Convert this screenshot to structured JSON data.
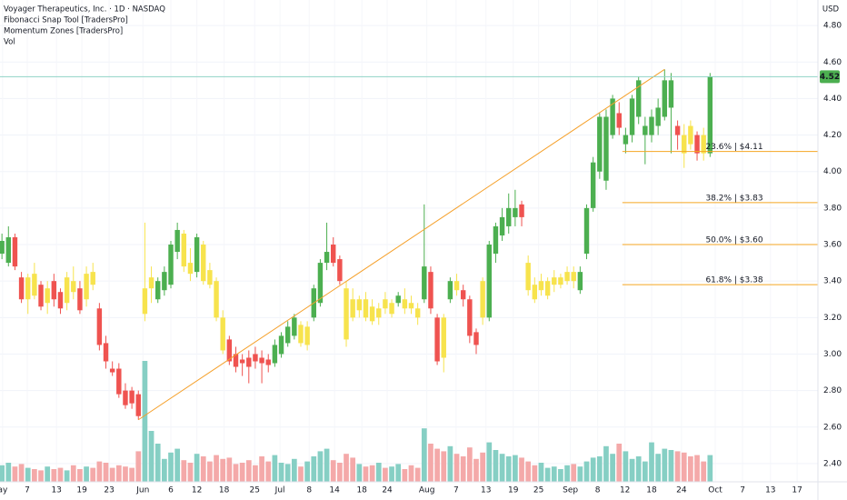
{
  "chart_data": {
    "type": "candlestick",
    "title": "Voyager Therapeutics, Inc. · 1D · NASDAQ",
    "indicators": [
      "Fibonacci Snap Tool [TradersPro]",
      "Momentum Zones [TradersPro]",
      "Vol"
    ],
    "currency": "USD",
    "ylim": [
      2.3,
      4.94
    ],
    "yticks": [
      {
        "value": 2.4,
        "label": "2.40"
      },
      {
        "value": 2.6,
        "label": "2.60"
      },
      {
        "value": 2.8,
        "label": "2.80"
      },
      {
        "value": 3.0,
        "label": "3.00"
      },
      {
        "value": 3.2,
        "label": "3.20"
      },
      {
        "value": 3.4,
        "label": "3.40"
      },
      {
        "value": 3.6,
        "label": "3.60"
      },
      {
        "value": 3.8,
        "label": "3.80"
      },
      {
        "value": 4.0,
        "label": "4.00"
      },
      {
        "value": 4.2,
        "label": "4.20"
      },
      {
        "value": 4.4,
        "label": "4.40"
      },
      {
        "value": 4.6,
        "label": "4.60"
      },
      {
        "value": 4.8,
        "label": "4.80"
      }
    ],
    "xlim": [
      -0.3,
      125.6
    ],
    "xticks": [
      {
        "value": 0.1,
        "label": "ay"
      },
      {
        "value": 3.9,
        "label": "7"
      },
      {
        "value": 8.4,
        "label": "13"
      },
      {
        "value": 12.3,
        "label": "19"
      },
      {
        "value": 16.5,
        "label": "23"
      },
      {
        "value": 21.7,
        "label": "Jun"
      },
      {
        "value": 26,
        "label": "6"
      },
      {
        "value": 30,
        "label": "12"
      },
      {
        "value": 34.2,
        "label": "18"
      },
      {
        "value": 38.9,
        "label": "25"
      },
      {
        "value": 42.8,
        "label": "Jul"
      },
      {
        "value": 47.3,
        "label": "8"
      },
      {
        "value": 51.2,
        "label": "14"
      },
      {
        "value": 55.4,
        "label": "18"
      },
      {
        "value": 59.3,
        "label": "24"
      },
      {
        "value": 65.4,
        "label": "Aug"
      },
      {
        "value": 69.9,
        "label": "7"
      },
      {
        "value": 74.5,
        "label": "13"
      },
      {
        "value": 78.7,
        "label": "19"
      },
      {
        "value": 82.6,
        "label": "25"
      },
      {
        "value": 87.5,
        "label": "Sep"
      },
      {
        "value": 91.7,
        "label": "8"
      },
      {
        "value": 95.9,
        "label": "12"
      },
      {
        "value": 100,
        "label": "18"
      },
      {
        "value": 104.6,
        "label": "24"
      },
      {
        "value": 109.8,
        "label": "Oct"
      },
      {
        "value": 114,
        "label": "7"
      },
      {
        "value": 118.3,
        "label": "13"
      },
      {
        "value": 122.4,
        "label": "17"
      }
    ],
    "grid": true,
    "candles": [
      [
        3.55,
        3.66,
        3.52,
        3.62
      ],
      [
        3.5,
        3.7,
        3.48,
        3.64
      ],
      [
        3.64,
        3.66,
        3.46,
        3.48
      ],
      [
        3.42,
        3.45,
        3.28,
        3.3
      ],
      [
        3.3,
        3.44,
        3.22,
        3.42
      ],
      [
        3.44,
        3.5,
        3.3,
        3.32
      ],
      [
        3.38,
        3.4,
        3.24,
        3.26
      ],
      [
        3.28,
        3.4,
        3.22,
        3.36
      ],
      [
        3.4,
        3.44,
        3.26,
        3.3
      ],
      [
        3.34,
        3.36,
        3.22,
        3.25
      ],
      [
        3.28,
        3.45,
        3.24,
        3.42
      ],
      [
        3.4,
        3.48,
        3.3,
        3.34
      ],
      [
        3.36,
        3.4,
        3.22,
        3.24
      ],
      [
        3.3,
        3.48,
        3.26,
        3.44
      ],
      [
        3.45,
        3.5,
        3.35,
        3.38
      ],
      [
        3.25,
        3.28,
        3.02,
        3.05
      ],
      [
        3.06,
        3.1,
        2.92,
        2.96
      ],
      [
        2.92,
        2.96,
        2.88,
        2.9
      ],
      [
        2.92,
        2.95,
        2.76,
        2.78
      ],
      [
        2.8,
        2.84,
        2.7,
        2.72
      ],
      [
        2.8,
        2.82,
        2.7,
        2.73
      ],
      [
        2.78,
        2.8,
        2.64,
        2.66
      ],
      [
        3.22,
        3.72,
        3.18,
        3.36
      ],
      [
        3.36,
        3.48,
        3.28,
        3.42
      ],
      [
        3.3,
        3.42,
        3.28,
        3.4
      ],
      [
        3.35,
        3.48,
        3.32,
        3.45
      ],
      [
        3.38,
        3.62,
        3.36,
        3.6
      ],
      [
        3.56,
        3.72,
        3.52,
        3.68
      ],
      [
        3.66,
        3.68,
        3.45,
        3.48
      ],
      [
        3.5,
        3.58,
        3.4,
        3.44
      ],
      [
        3.45,
        3.66,
        3.42,
        3.64
      ],
      [
        3.6,
        3.62,
        3.38,
        3.4
      ],
      [
        3.46,
        3.5,
        3.36,
        3.38
      ],
      [
        3.4,
        3.42,
        3.18,
        3.2
      ],
      [
        3.2,
        3.24,
        3.0,
        3.02
      ],
      [
        3.08,
        3.1,
        2.94,
        2.96
      ],
      [
        3.0,
        3.04,
        2.9,
        2.93
      ],
      [
        2.97,
        3.0,
        2.88,
        2.95
      ],
      [
        2.98,
        3.02,
        2.84,
        2.93
      ],
      [
        3.0,
        3.04,
        2.92,
        2.96
      ],
      [
        2.98,
        3.02,
        2.84,
        2.95
      ],
      [
        2.97,
        3.0,
        2.9,
        2.94
      ],
      [
        2.95,
        3.08,
        2.93,
        3.05
      ],
      [
        3.0,
        3.12,
        2.98,
        3.1
      ],
      [
        3.06,
        3.18,
        3.04,
        3.15
      ],
      [
        3.1,
        3.22,
        3.08,
        3.2
      ],
      [
        3.16,
        3.18,
        3.04,
        3.06
      ],
      [
        3.05,
        3.18,
        3.02,
        3.15
      ],
      [
        3.2,
        3.38,
        3.18,
        3.36
      ],
      [
        3.28,
        3.52,
        3.26,
        3.5
      ],
      [
        3.5,
        3.72,
        3.46,
        3.56
      ],
      [
        3.6,
        3.64,
        3.48,
        3.5
      ],
      [
        3.52,
        3.54,
        3.38,
        3.4
      ],
      [
        3.36,
        3.4,
        3.04,
        3.08
      ],
      [
        3.3,
        3.36,
        3.18,
        3.2
      ],
      [
        3.24,
        3.32,
        3.2,
        3.3
      ],
      [
        3.3,
        3.34,
        3.18,
        3.2
      ],
      [
        3.26,
        3.3,
        3.16,
        3.18
      ],
      [
        3.2,
        3.28,
        3.16,
        3.25
      ],
      [
        3.3,
        3.34,
        3.22,
        3.25
      ],
      [
        3.22,
        3.3,
        3.2,
        3.28
      ],
      [
        3.28,
        3.34,
        3.26,
        3.32
      ],
      [
        3.3,
        3.36,
        3.22,
        3.25
      ],
      [
        3.28,
        3.32,
        3.22,
        3.25
      ],
      [
        3.25,
        3.28,
        3.16,
        3.2
      ],
      [
        3.3,
        3.82,
        3.28,
        3.48
      ],
      [
        3.45,
        3.48,
        3.22,
        3.25
      ],
      [
        3.2,
        3.22,
        2.94,
        2.96
      ],
      [
        3.2,
        3.22,
        2.9,
        2.98
      ],
      [
        3.3,
        3.42,
        3.28,
        3.4
      ],
      [
        3.4,
        3.44,
        3.32,
        3.35
      ],
      [
        3.35,
        3.38,
        3.26,
        3.3
      ],
      [
        3.3,
        3.32,
        3.06,
        3.1
      ],
      [
        3.12,
        3.14,
        3.0,
        3.05
      ],
      [
        3.4,
        3.42,
        3.16,
        3.2
      ],
      [
        3.2,
        3.62,
        3.18,
        3.6
      ],
      [
        3.55,
        3.72,
        3.5,
        3.7
      ],
      [
        3.65,
        3.8,
        3.62,
        3.75
      ],
      [
        3.7,
        3.88,
        3.66,
        3.8
      ],
      [
        3.75,
        3.9,
        3.7,
        3.8
      ],
      [
        3.82,
        3.84,
        3.7,
        3.75
      ],
      [
        3.5,
        3.54,
        3.32,
        3.35
      ],
      [
        3.38,
        3.42,
        3.28,
        3.3
      ],
      [
        3.35,
        3.44,
        3.32,
        3.4
      ],
      [
        3.32,
        3.42,
        3.3,
        3.4
      ],
      [
        3.38,
        3.46,
        3.34,
        3.42
      ],
      [
        3.38,
        3.44,
        3.36,
        3.42
      ],
      [
        3.4,
        3.48,
        3.38,
        3.45
      ],
      [
        3.45,
        3.48,
        3.36,
        3.4
      ],
      [
        3.35,
        3.48,
        3.33,
        3.45
      ],
      [
        3.55,
        3.82,
        3.52,
        3.8
      ],
      [
        3.8,
        4.08,
        3.78,
        4.05
      ],
      [
        4.0,
        4.32,
        3.96,
        4.3
      ],
      [
        3.95,
        4.34,
        3.9,
        4.3
      ],
      [
        4.2,
        4.42,
        4.18,
        4.4
      ],
      [
        4.32,
        4.38,
        4.2,
        4.24
      ],
      [
        4.15,
        4.24,
        4.1,
        4.2
      ],
      [
        4.2,
        4.42,
        4.16,
        4.4
      ],
      [
        4.3,
        4.52,
        4.26,
        4.5
      ],
      [
        4.2,
        4.3,
        4.04,
        4.25
      ],
      [
        4.2,
        4.34,
        4.16,
        4.3
      ],
      [
        4.25,
        4.4,
        4.2,
        4.35
      ],
      [
        4.3,
        4.56,
        4.28,
        4.5
      ],
      [
        4.35,
        4.54,
        4.1,
        4.5
      ],
      [
        4.25,
        4.28,
        4.12,
        4.2
      ],
      [
        4.2,
        4.26,
        4.02,
        4.1
      ],
      [
        4.25,
        4.28,
        4.12,
        4.15
      ],
      [
        4.2,
        4.22,
        4.06,
        4.1
      ],
      [
        4.2,
        4.24,
        4.06,
        4.1
      ],
      [
        4.1,
        4.54,
        4.08,
        4.52
      ]
    ],
    "candle_colors": [
      "#4caf50",
      "#4caf50",
      "#ef5350",
      "#ef5350",
      "#f7e34d",
      "#f7e34d",
      "#ef5350",
      "#f7e34d",
      "#ef5350",
      "#ef5350",
      "#f7e34d",
      "#f7e34d",
      "#ef5350",
      "#f7e34d",
      "#f7e34d",
      "#ef5350",
      "#ef5350",
      "#ef5350",
      "#ef5350",
      "#ef5350",
      "#ef5350",
      "#ef5350",
      "#f7e34d",
      "#f7e34d",
      "#4caf50",
      "#4caf50",
      "#4caf50",
      "#4caf50",
      "#f7e34d",
      "#f7e34d",
      "#4caf50",
      "#f7e34d",
      "#f7e34d",
      "#f7e34d",
      "#f7e34d",
      "#ef5350",
      "#ef5350",
      "#ef5350",
      "#ef5350",
      "#ef5350",
      "#ef5350",
      "#ef5350",
      "#4caf50",
      "#4caf50",
      "#4caf50",
      "#4caf50",
      "#f7e34d",
      "#f7e34d",
      "#4caf50",
      "#4caf50",
      "#4caf50",
      "#ef5350",
      "#ef5350",
      "#f7e34d",
      "#f7e34d",
      "#f7e34d",
      "#f7e34d",
      "#f7e34d",
      "#f7e34d",
      "#f7e34d",
      "#f7e34d",
      "#4caf50",
      "#f7e34d",
      "#f7e34d",
      "#f7e34d",
      "#4caf50",
      "#ef5350",
      "#ef5350",
      "#f7e34d",
      "#4caf50",
      "#f7e34d",
      "#ef5350",
      "#ef5350",
      "#ef5350",
      "#f7e34d",
      "#4caf50",
      "#4caf50",
      "#4caf50",
      "#4caf50",
      "#4caf50",
      "#ef5350",
      "#f7e34d",
      "#f7e34d",
      "#f7e34d",
      "#f7e34d",
      "#f7e34d",
      "#f7e34d",
      "#f7e34d",
      "#f7e34d",
      "#4caf50",
      "#4caf50",
      "#4caf50",
      "#4caf50",
      "#4caf50",
      "#4caf50",
      "#ef5350",
      "#4caf50",
      "#4caf50",
      "#4caf50",
      "#4caf50",
      "#4caf50",
      "#4caf50",
      "#4caf50",
      "#4caf50",
      "#ef5350",
      "#f7e34d",
      "#f7e34d",
      "#ef5350",
      "#f7e34d",
      "#4caf50"
    ],
    "volumes": [
      130,
      150,
      120,
      140,
      110,
      100,
      90,
      120,
      100,
      110,
      90,
      130,
      100,
      120,
      110,
      160,
      150,
      110,
      130,
      120,
      110,
      240,
      950,
      400,
      300,
      180,
      230,
      260,
      170,
      150,
      220,
      200,
      160,
      210,
      180,
      190,
      140,
      150,
      170,
      130,
      200,
      160,
      210,
      150,
      140,
      180,
      120,
      160,
      200,
      240,
      260,
      170,
      150,
      220,
      190,
      140,
      120,
      130,
      150,
      110,
      120,
      140,
      100,
      130,
      110,
      420,
      300,
      260,
      240,
      280,
      220,
      200,
      270,
      180,
      230,
      310,
      250,
      220,
      200,
      210,
      190,
      160,
      130,
      150,
      110,
      120,
      100,
      130,
      140,
      120,
      160,
      190,
      200,
      280,
      220,
      300,
      240,
      180,
      200,
      160,
      310,
      220,
      260,
      250,
      240,
      230,
      200,
      210,
      160,
      210
    ],
    "volume_colors": {
      "up": "#86cfc4",
      "down": "#f4a9a9"
    },
    "vlim": [
      0,
      1000
    ],
    "last_price": 4.52,
    "last_price_color": "#4caf50",
    "trendline": {
      "x": [
        21,
        102
      ],
      "y": [
        2.64,
        4.56
      ],
      "color": "#f5a02a"
    },
    "fib_color": "#f5a623",
    "fib_levels": [
      {
        "ratio": 23.6,
        "price": 4.11,
        "label": "23.6% | $4.11"
      },
      {
        "ratio": 38.2,
        "price": 3.83,
        "label": "38.2% | $3.83"
      },
      {
        "ratio": 50.0,
        "price": 3.6,
        "label": "50.0% | $3.60"
      },
      {
        "ratio": 61.8,
        "price": 3.38,
        "label": "61.8% | $3.38"
      }
    ],
    "fib_start": 95.5
  }
}
